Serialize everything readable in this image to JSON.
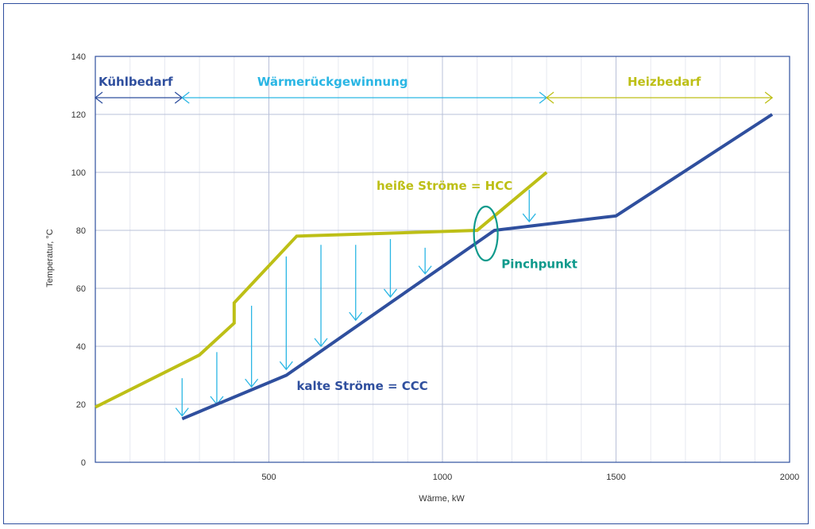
{
  "chart_data": {
    "type": "line",
    "title": "",
    "xlabel": "Wärme, kW",
    "ylabel": "Temperatur, °C",
    "xlim": [
      0,
      2000
    ],
    "ylim": [
      0,
      140
    ],
    "x_ticks": [
      500,
      1000,
      1500,
      2000
    ],
    "x_tick_labels": [
      "500",
      "1000",
      "1500",
      "2000"
    ],
    "y_ticks": [
      0,
      20,
      40,
      60,
      80,
      100,
      120,
      140
    ],
    "y_tick_labels": [
      "0",
      "20",
      "40",
      "60",
      "80",
      "100",
      "120",
      "140"
    ],
    "grid": true,
    "series": [
      {
        "name": "heiße Ströme = HCC",
        "color": "#bdbf16",
        "points": [
          [
            0,
            19
          ],
          [
            300,
            37
          ],
          [
            400,
            48
          ],
          [
            400,
            55
          ],
          [
            580,
            78
          ],
          [
            1100,
            80
          ],
          [
            1300,
            100
          ]
        ]
      },
      {
        "name": "kalte Ströme = CCC",
        "color": "#2f4f9e",
        "points": [
          [
            250,
            15
          ],
          [
            550,
            30
          ],
          [
            1150,
            80
          ],
          [
            1500,
            85
          ],
          [
            1950,
            120
          ]
        ]
      }
    ],
    "heat_transfer_arrows": [
      {
        "x": 250,
        "y_from": 29,
        "y_to": 16
      },
      {
        "x": 350,
        "y_from": 38,
        "y_to": 20
      },
      {
        "x": 450,
        "y_from": 54,
        "y_to": 26
      },
      {
        "x": 550,
        "y_from": 71,
        "y_to": 32
      },
      {
        "x": 650,
        "y_from": 75,
        "y_to": 40
      },
      {
        "x": 750,
        "y_from": 75,
        "y_to": 49
      },
      {
        "x": 850,
        "y_from": 77,
        "y_to": 57
      },
      {
        "x": 950,
        "y_from": 74,
        "y_to": 65
      },
      {
        "x": 1250,
        "y_from": 94,
        "y_to": 83
      }
    ],
    "regions": [
      {
        "label": "Kühlbedarf",
        "x_from": 0,
        "x_to": 250,
        "color": "#2f4f9e"
      },
      {
        "label": "Wärmerückgewinnung",
        "x_from": 250,
        "x_to": 1300,
        "color": "#2ab6e4"
      },
      {
        "label": "Heizbedarf",
        "x_from": 1300,
        "x_to": 1950,
        "color": "#bdbf16"
      }
    ],
    "annotations": [
      {
        "label": "heiße Ströme = HCC",
        "x": 810,
        "y": 94,
        "color": "#bdbf16"
      },
      {
        "label": "kalte Ströme = CCC",
        "x": 580,
        "y": 25,
        "color": "#2f4f9e"
      },
      {
        "label": "Pinchpunkt",
        "x": 1170,
        "y": 67,
        "color": "#0f9a8c"
      }
    ],
    "pinch_point": {
      "x": 1125,
      "y": 80,
      "color": "#0f9a8c"
    }
  }
}
